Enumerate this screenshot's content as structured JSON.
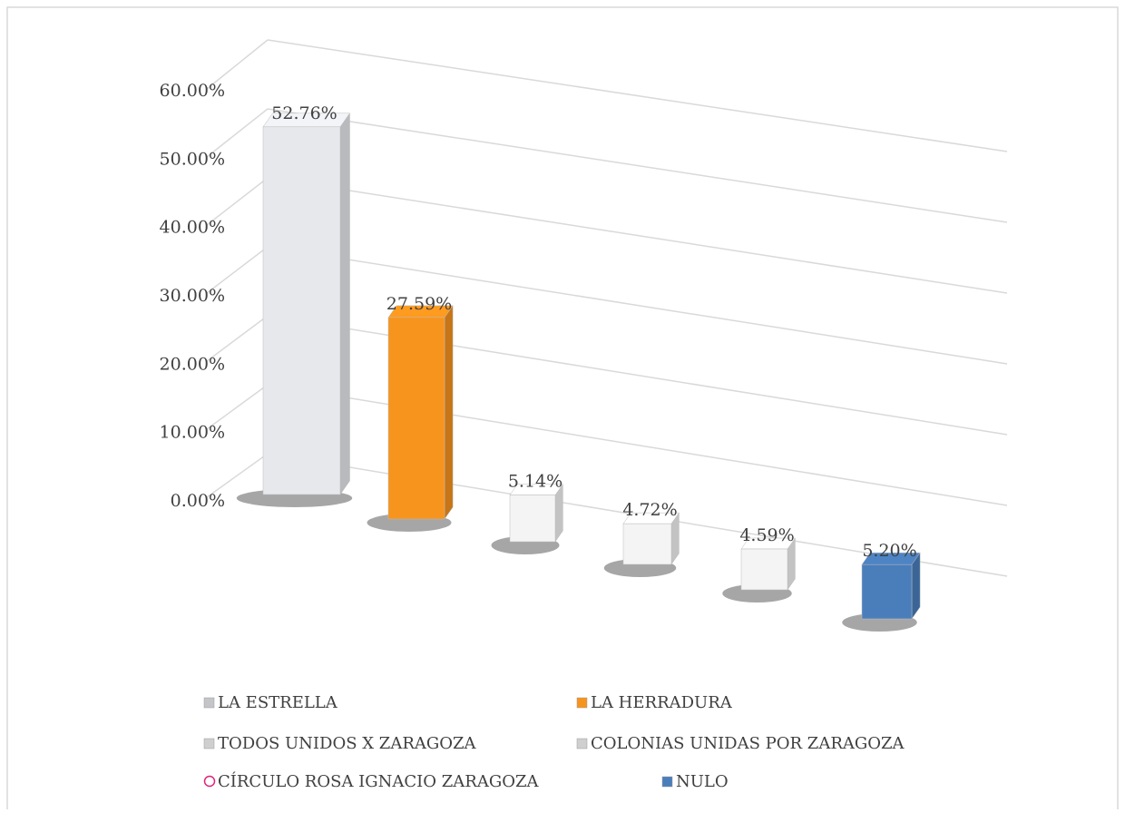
{
  "chart_data": {
    "type": "bar3d",
    "categories": [
      "LA ESTRELLA",
      "LA HERRADURA",
      "TODOS UNIDOS X ZARAGOZA",
      "COLONIAS UNIDAS POR ZARAGOZA",
      "CÍRCULO ROSA IGNACIO ZARAGOZA",
      "NULO"
    ],
    "values": [
      52.76,
      27.59,
      5.14,
      4.72,
      4.59,
      5.2
    ],
    "value_labels": [
      "52.76%",
      "27.59%",
      "5.14%",
      "4.72%",
      "4.59%",
      "5.20%"
    ],
    "colors": [
      "#e6e8ec",
      "#f7941d",
      "#f4f4f4",
      "#f4f4f4",
      "#f4f4f4",
      "#4a7ebb"
    ],
    "ylim": [
      0,
      60
    ],
    "yticks": [
      {
        "value": 0,
        "label": "0.00%"
      },
      {
        "value": 10,
        "label": "10.00%"
      },
      {
        "value": 20,
        "label": "20.00%"
      },
      {
        "value": 30,
        "label": "30.00%"
      },
      {
        "value": 40,
        "label": "40.00%"
      },
      {
        "value": 50,
        "label": "50.00%"
      },
      {
        "value": 60,
        "label": "60.00%"
      }
    ],
    "grid": true
  }
}
